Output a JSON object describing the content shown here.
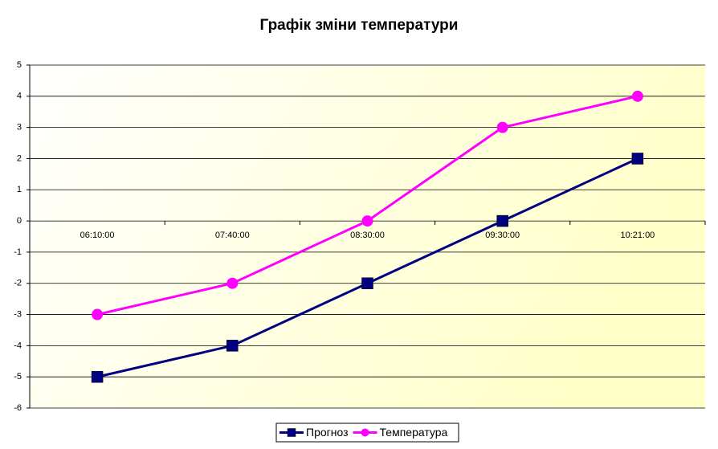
{
  "chart_data": {
    "type": "line",
    "title": "Графік зміни температури",
    "categories": [
      "06:10:00",
      "07:40:00",
      "08:30:00",
      "09:30:00",
      "10:21:00"
    ],
    "series": [
      {
        "name": "Прогноз",
        "color": "#000080",
        "marker": "square",
        "values": [
          -5,
          -4,
          -2,
          0,
          2
        ]
      },
      {
        "name": "Температура",
        "color": "#ff00ff",
        "marker": "circle",
        "values": [
          -3,
          -2,
          0,
          3,
          4
        ]
      }
    ],
    "ylim": [
      -6,
      5
    ],
    "yticks": [
      -6,
      -5,
      -4,
      -3,
      -2,
      -1,
      0,
      1,
      2,
      3,
      4,
      5
    ],
    "grid": true,
    "legend": "bottom"
  }
}
